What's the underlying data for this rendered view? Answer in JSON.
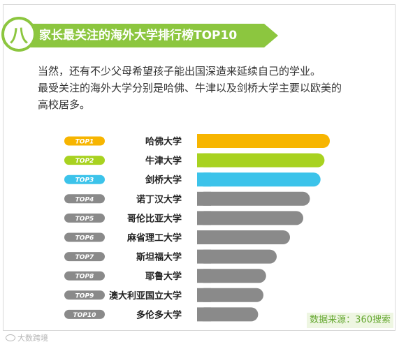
{
  "section_number": "八",
  "title": "家长最关注的海外大学排行榜TOP10",
  "description": [
    "当然，还有不少父母希望孩子能出国深造来延续自己的学业。",
    "最受关注的海外大学分别是哈佛、牛津以及剑桥大学主要以欧美的",
    "高校居多。"
  ],
  "source": "数据来源：360搜索",
  "watermark": "大数跨境",
  "colors": {
    "accent": "#8cc63f",
    "top1": "#f7b500",
    "top2": "#a8d220",
    "top3": "#3cc3ea",
    "rest": "#8a8a8a"
  },
  "chart_data": {
    "type": "bar",
    "orientation": "horizontal",
    "ranks": [
      "TOP1",
      "TOP2",
      "TOP3",
      "TOP4",
      "TOP5",
      "TOP6",
      "TOP7",
      "TOP8",
      "TOP9",
      "TOP10"
    ],
    "categories": [
      "哈佛大学",
      "牛津大学",
      "剑桥大学",
      "诺丁汉大学",
      "哥伦比亚大学",
      "麻省理工大学",
      "斯坦福大学",
      "耶鲁大学",
      "澳大利亚国立大学",
      "多伦多大学"
    ],
    "values": [
      100,
      96,
      93,
      85,
      80,
      70,
      60,
      52,
      50,
      46
    ],
    "xlim": [
      0,
      100
    ],
    "grid": false,
    "legend": "none"
  }
}
